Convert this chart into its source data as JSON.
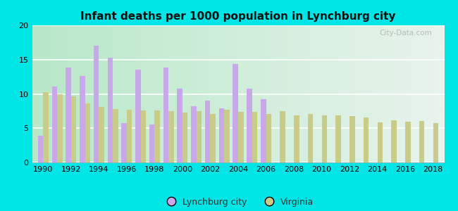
{
  "title": "Infant deaths per 1000 population in Lynchburg city",
  "years": [
    1990,
    1991,
    1992,
    1993,
    1994,
    1995,
    1996,
    1997,
    1998,
    1999,
    2000,
    2001,
    2002,
    2003,
    2004,
    2005,
    2006,
    2007,
    2008,
    2009,
    2010,
    2011,
    2012,
    2013,
    2014,
    2015,
    2016,
    2017,
    2018
  ],
  "lynchburg": [
    3.9,
    11.1,
    13.8,
    12.6,
    17.0,
    15.3,
    5.7,
    13.5,
    5.5,
    13.8,
    10.8,
    8.2,
    9.0,
    7.9,
    14.4,
    10.8,
    9.2,
    null,
    null,
    null,
    null,
    null,
    null,
    null,
    null,
    null,
    null,
    null,
    null
  ],
  "virginia": [
    10.3,
    10.0,
    9.6,
    8.6,
    8.1,
    7.8,
    7.7,
    7.6,
    7.6,
    7.5,
    7.3,
    7.5,
    7.1,
    7.7,
    7.4,
    7.4,
    7.1,
    7.5,
    6.9,
    7.1,
    6.9,
    6.9,
    6.8,
    6.6,
    5.8,
    6.2,
    6.0,
    6.1,
    5.7
  ],
  "lynchburg_color": "#c8a8e8",
  "virginia_color": "#c8cc88",
  "bg_left": "#b8e8c8",
  "bg_right": "#e8f4ec",
  "ylim": [
    0,
    20
  ],
  "yticks": [
    0,
    5,
    10,
    15,
    20
  ],
  "bar_width": 0.38,
  "figure_bg": "#00e5e5",
  "legend_lynchburg": "Lynchburg city",
  "legend_virginia": "Virginia",
  "grid_color": "#d8eed8",
  "watermark": "City-Data.com"
}
